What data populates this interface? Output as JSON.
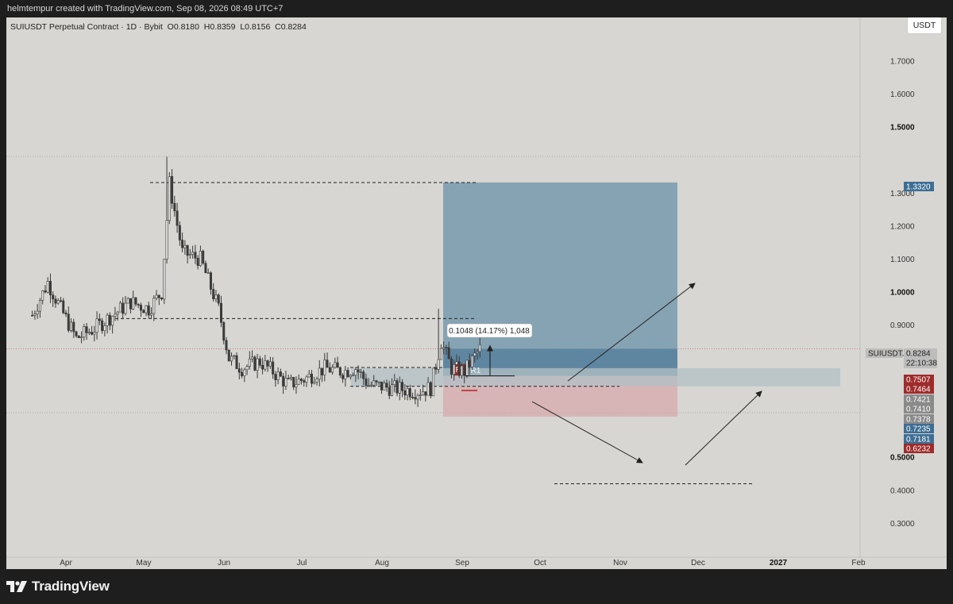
{
  "header": {
    "text": "helmtempur created with TradingView.com, Sep 08, 2026 08:49 UTC+7"
  },
  "chart": {
    "symbol_title": "SUIUSDT Perpetual Contract · 1D · Bybit",
    "ohlc": {
      "O": "0.8180",
      "H": "0.8359",
      "L": "0.8156",
      "C": "0.8284"
    },
    "currency": "USDT",
    "symbol_tag": "SUIUSDT.P",
    "last_price": "0.8284",
    "countdown": "22:10:38",
    "measure_label": "0.1048 (14.17%) 1,048",
    "box_labels": [
      "R2",
      "R1"
    ]
  },
  "footer": {
    "brand": "TradingView"
  },
  "colors": {
    "background": "#d7d6d2",
    "candle": "#3a3a3a",
    "target_zone": "#6f95ab",
    "stop_zone": "#d7a9ac",
    "entry_zone": "#b3c0c6",
    "price_blue": "#3d6e94",
    "price_red": "#9e2b2b",
    "price_gray": "#8a8a8a"
  },
  "chart_data": {
    "type": "candlestick",
    "title": "SUIUSDT Perpetual Contract · 1D · Bybit",
    "x_tick_labels": [
      "Apr",
      "May",
      "Jun",
      "Jul",
      "Aug",
      "Sep",
      "Oct",
      "Nov",
      "Dec",
      "2027",
      "Feb"
    ],
    "y_ticks": [
      "0.3000",
      "0.4000",
      "0.5000",
      "0.9000",
      "1.0000",
      "1.1000",
      "1.2000",
      "1.3000",
      "1.5000",
      "1.6000",
      "1.7000"
    ],
    "y_bold_ticks": [
      "0.5000",
      "1.0000",
      "1.5000"
    ],
    "ylim": [
      0.24,
      1.8
    ],
    "close_series_approx": [
      [
        "2026-03-19",
        0.93
      ],
      [
        "2026-03-25",
        1.03
      ],
      [
        "2026-03-30",
        0.95
      ],
      [
        "2026-04-05",
        0.86
      ],
      [
        "2026-04-12",
        0.89
      ],
      [
        "2026-04-19",
        0.93
      ],
      [
        "2026-04-26",
        0.97
      ],
      [
        "2026-05-03",
        0.95
      ],
      [
        "2026-05-08",
        1.0
      ],
      [
        "2026-05-11",
        1.33
      ],
      [
        "2026-05-16",
        1.12
      ],
      [
        "2026-05-23",
        1.1
      ],
      [
        "2026-05-30",
        0.95
      ],
      [
        "2026-06-03",
        0.8
      ],
      [
        "2026-06-08",
        0.77
      ],
      [
        "2026-06-15",
        0.79
      ],
      [
        "2026-06-20",
        0.76
      ],
      [
        "2026-06-26",
        0.72
      ],
      [
        "2026-07-03",
        0.74
      ],
      [
        "2026-07-10",
        0.77
      ],
      [
        "2026-07-17",
        0.76
      ],
      [
        "2026-07-22",
        0.77
      ],
      [
        "2026-07-27",
        0.72
      ],
      [
        "2026-08-05",
        0.71
      ],
      [
        "2026-08-15",
        0.7
      ],
      [
        "2026-08-20",
        0.71
      ],
      [
        "2026-08-24",
        0.85
      ],
      [
        "2026-08-28",
        0.77
      ],
      [
        "2026-09-02",
        0.76
      ],
      [
        "2026-09-08",
        0.8284
      ]
    ],
    "price_tags_right_axis": [
      {
        "value": "1.3320",
        "color": "blue"
      },
      {
        "value": "0.8284",
        "color": "gray",
        "label": "SUIUSDT.P",
        "sub": "22:10:38"
      },
      {
        "value": "0.7507",
        "color": "red"
      },
      {
        "value": "0.7464",
        "color": "red"
      },
      {
        "value": "0.7421",
        "color": "gray"
      },
      {
        "value": "0.7410",
        "color": "gray"
      },
      {
        "value": "0.7378",
        "color": "gray"
      },
      {
        "value": "0.7235",
        "color": "blue"
      },
      {
        "value": "0.7181",
        "color": "blue"
      },
      {
        "value": "0.6232",
        "color": "red"
      }
    ],
    "position_tool": {
      "entry": 0.7464,
      "target": 1.332,
      "stop": 0.6232
    },
    "annotations": {
      "measure": "0.1048 (14.17%) 1,048",
      "horizontal_levels": [
        1.332,
        0.92,
        0.75,
        0.715,
        0.42
      ]
    }
  }
}
